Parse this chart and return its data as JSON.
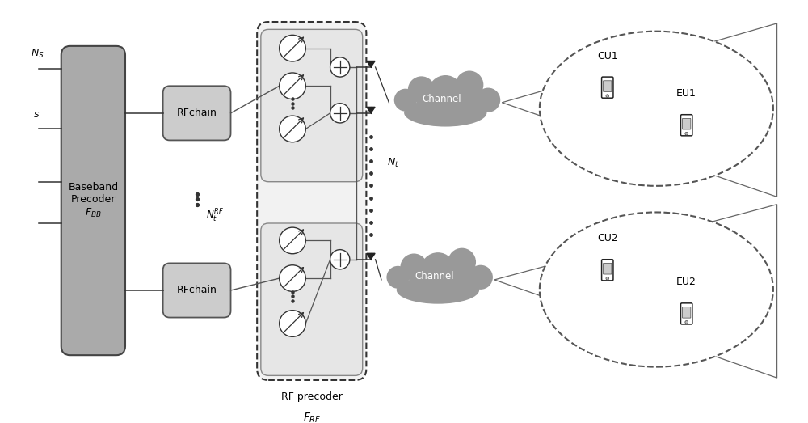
{
  "bg_color": "#ffffff",
  "fig_width": 10.0,
  "fig_height": 5.23,
  "bb_color": "#aaaaaa",
  "rfchain_color": "#cccccc",
  "rfp_bg_color": "#eeeeee",
  "grp_bg_color": "#e4e4e4",
  "cloud_color": "#999999",
  "ns_label": "$N_S$",
  "s_label": "$s$",
  "nt_rf_label": "$N_t^{RF}$",
  "nt_label": "$N_t$",
  "rfp_label1": "RF precoder",
  "rfp_label2": "$F_{RF}$",
  "bb_label": "Baseband\nPrecoder\n$F_{BB}$",
  "rfc_label": "RFchain",
  "channel_label": "Channel",
  "cu1": "CU1",
  "eu1": "EU1",
  "cu2": "CU2",
  "eu2": "EU2"
}
